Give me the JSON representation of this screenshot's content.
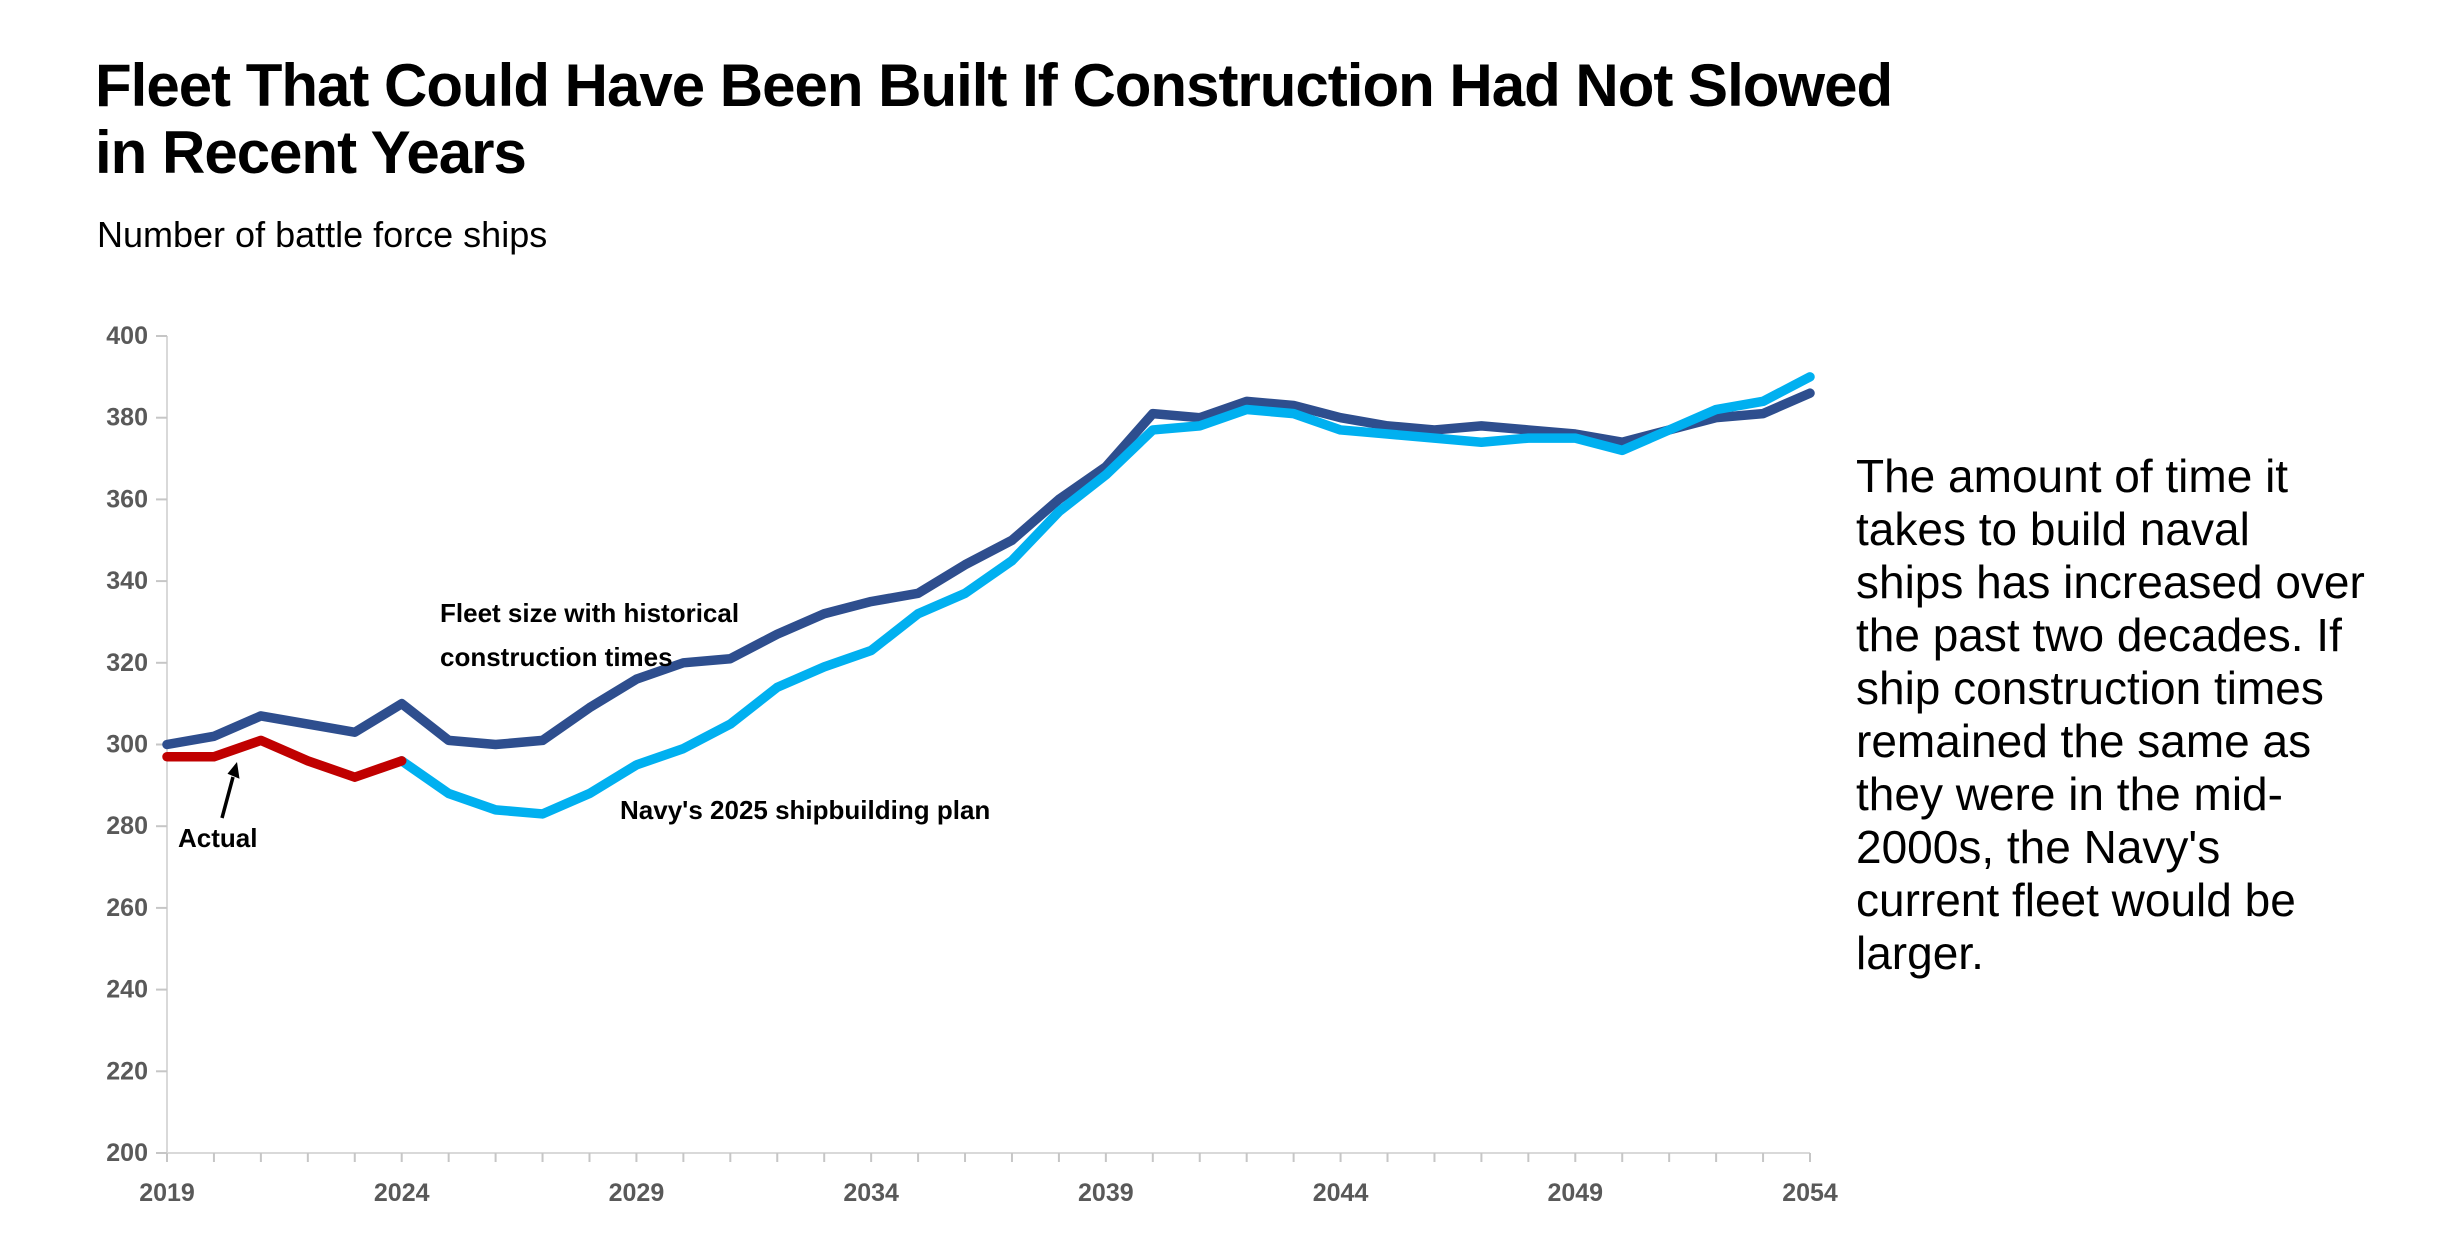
{
  "header": {
    "title": "Fleet That Could Have Been Built If Construction Had Not Slowed\nin Recent Years",
    "subtitle": "Number of battle force ships"
  },
  "side_note": {
    "text": "The amount of time it\ntakes to build naval\nships has increased over\nthe past two decades. If\nship construction times\nremained the same as\nthey were in the mid-\n2000s, the Navy's\ncurrent fleet would be\nlarger."
  },
  "annotations": {
    "actual_label": "Actual",
    "historical_label": "Fleet size with historical\nconstruction times",
    "plan_label": "Navy's 2025 shipbuilding plan"
  },
  "colors": {
    "actual": "#C00000",
    "historical": "#2E4E8E",
    "plan": "#00B0F0",
    "axis_line": "#D9D9D9",
    "tick_mark": "#C6C6C6",
    "tick_label": "#595959",
    "annotation_arrow": "#000000"
  },
  "chart_data": {
    "type": "line",
    "title": "Fleet That Could Have Been Built If Construction Had Not Slowed in Recent Years",
    "ylabel": "Number of battle force ships",
    "xlabel": "",
    "xlim": [
      2019,
      2054
    ],
    "ylim": [
      200,
      400
    ],
    "grid": false,
    "legend_position": "none (direct line labels)",
    "y_ticks": [
      200,
      220,
      240,
      260,
      280,
      300,
      320,
      340,
      360,
      380,
      400
    ],
    "x_minor_tick_years_step": 1,
    "x_tick_labels": [
      2019,
      2024,
      2029,
      2034,
      2039,
      2044,
      2049,
      2054
    ],
    "series": [
      {
        "name": "Fleet size with historical construction times",
        "color": "#2E4E8E",
        "x_start": 2019,
        "values": [
          300,
          302,
          307,
          305,
          303,
          310,
          301,
          300,
          301,
          309,
          316,
          320,
          321,
          327,
          332,
          335,
          337,
          344,
          350,
          360,
          368,
          381,
          380,
          384,
          383,
          380,
          378,
          377,
          378,
          377,
          376,
          374,
          377,
          380,
          381,
          386
        ]
      },
      {
        "name": "Navy's 2025 shipbuilding plan",
        "color": "#00B0F0",
        "x_start": 2024,
        "values": [
          296,
          288,
          284,
          283,
          288,
          295,
          299,
          305,
          314,
          319,
          323,
          332,
          337,
          345,
          357,
          366,
          377,
          378,
          382,
          381,
          377,
          376,
          375,
          374,
          375,
          375,
          372,
          377,
          382,
          384,
          390
        ]
      },
      {
        "name": "Actual",
        "color": "#C00000",
        "x_start": 2019,
        "values": [
          297,
          297,
          301,
          296,
          292,
          296
        ]
      }
    ]
  }
}
